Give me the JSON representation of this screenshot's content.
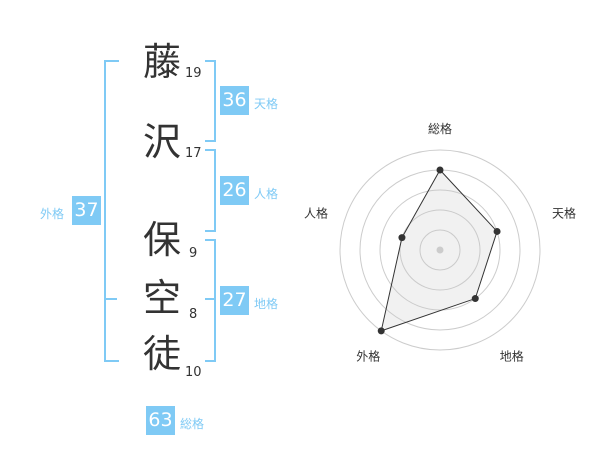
{
  "name": {
    "chars": [
      {
        "char": "藤",
        "strokes": "19"
      },
      {
        "char": "沢",
        "strokes": "17"
      },
      {
        "char": "保",
        "strokes": "9"
      },
      {
        "char": "空",
        "strokes": "8"
      },
      {
        "char": "徒",
        "strokes": "10"
      }
    ]
  },
  "kaku": {
    "tenkaku": {
      "label": "天格",
      "value": "36"
    },
    "jinkaku": {
      "label": "人格",
      "value": "26"
    },
    "chikaku": {
      "label": "地格",
      "value": "27"
    },
    "gaikaku": {
      "label": "外格",
      "value": "37"
    },
    "soukaku": {
      "label": "総格",
      "value": "63"
    }
  },
  "accent_color": "#7fcaf5",
  "chart_data": {
    "type": "radar",
    "axes": [
      "総格",
      "天格",
      "地格",
      "外格",
      "人格"
    ],
    "values": [
      4,
      3,
      3,
      5,
      2
    ],
    "range": [
      0,
      5
    ],
    "grid": "concentric circles"
  }
}
